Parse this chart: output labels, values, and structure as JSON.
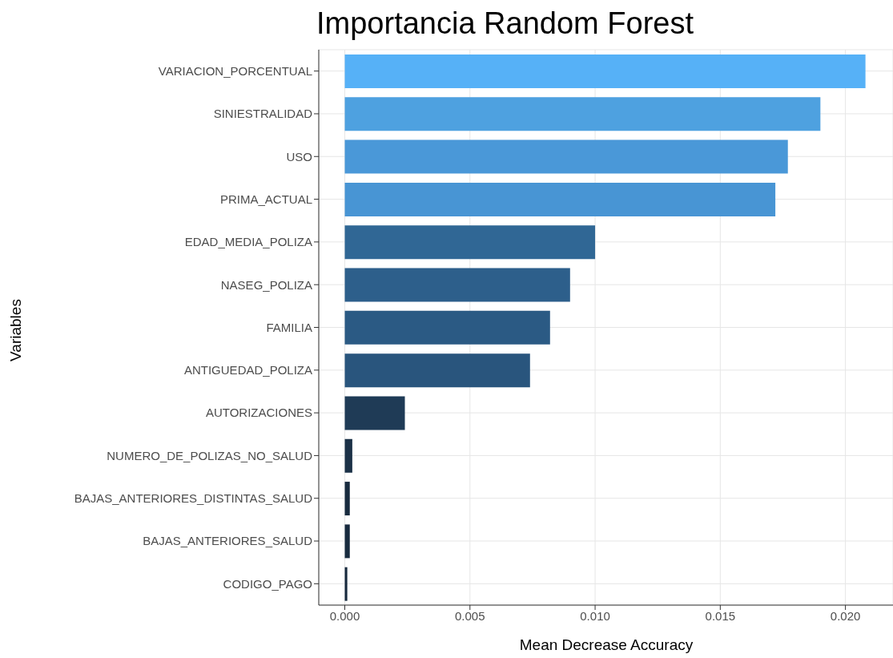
{
  "chart_data": {
    "type": "bar",
    "orientation": "horizontal",
    "title": "Importancia Random Forest",
    "xlabel": "Mean Decrease Accuracy",
    "ylabel": "Variables",
    "categories": [
      "VARIACION_PORCENTUAL",
      "SINIESTRALIDAD",
      "USO",
      "PRIMA_ACTUAL",
      "EDAD_MEDIA_POLIZA",
      "NASEG_POLIZA",
      "FAMILIA",
      "ANTIGUEDAD_POLIZA",
      "AUTORIZACIONES",
      "NUMERO_DE_POLIZAS_NO_SALUD",
      "BAJAS_ANTERIORES_DISTINTAS_SALUD",
      "BAJAS_ANTERIORES_SALUD",
      "CODIGO_PAGO"
    ],
    "values": [
      0.0208,
      0.019,
      0.0177,
      0.0172,
      0.01,
      0.009,
      0.0082,
      0.0074,
      0.0024,
      0.0003,
      0.0002,
      0.0002,
      0.0001
    ],
    "colors": [
      "#56b1f7",
      "#4ea1e0",
      "#4a98d8",
      "#4895d4",
      "#306795",
      "#2d5f8b",
      "#2b5a84",
      "#29557d",
      "#1f3b56",
      "#1b3147",
      "#182b3f",
      "#182b3f",
      "#172a3d"
    ],
    "xlim": [
      -0.00104,
      0.0219
    ],
    "xticks": [
      {
        "value": 0,
        "label": "0.000"
      },
      {
        "value": 0.005,
        "label": "0.005"
      },
      {
        "value": 0.01,
        "label": "0.010"
      },
      {
        "value": 0.015,
        "label": "0.015"
      },
      {
        "value": 0.02,
        "label": "0.020"
      }
    ],
    "grid": true
  }
}
